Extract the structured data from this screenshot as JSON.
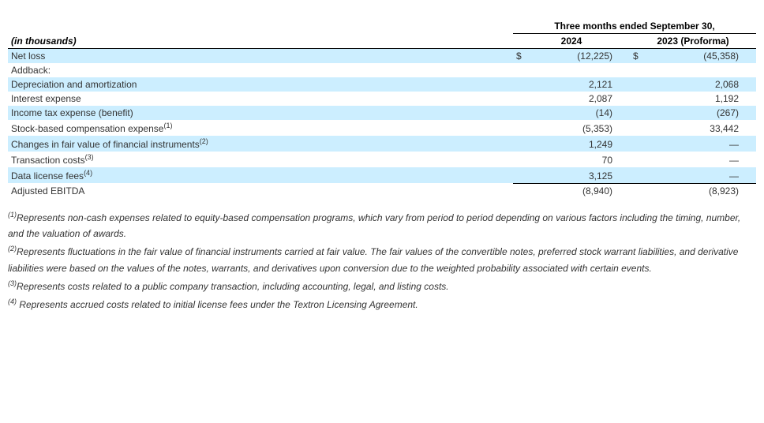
{
  "table": {
    "super_header": "Three months ended September 30,",
    "unit_label": "(in thousands)",
    "col_headers": [
      "2024",
      "2023 (Proforma)"
    ],
    "highlight_color": "#cceeff",
    "rows": [
      {
        "label": "Net loss",
        "sup": "",
        "sym1": "$",
        "val1": "(12,225)",
        "sym2": "$",
        "val2": "(45,358)",
        "hl": true
      },
      {
        "label": "Addback:",
        "sup": "",
        "sym1": "",
        "val1": "",
        "sym2": "",
        "val2": "",
        "hl": false
      },
      {
        "label": "Depreciation and amortization",
        "sup": "",
        "sym1": "",
        "val1": "2,121",
        "sym2": "",
        "val2": "2,068",
        "hl": true
      },
      {
        "label": "Interest expense",
        "sup": "",
        "sym1": "",
        "val1": "2,087",
        "sym2": "",
        "val2": "1,192",
        "hl": false
      },
      {
        "label": "Income tax expense (benefit)",
        "sup": "",
        "sym1": "",
        "val1": "(14)",
        "sym2": "",
        "val2": "(267)",
        "hl": true
      },
      {
        "label": "Stock-based compensation expense",
        "sup": "(1)",
        "sym1": "",
        "val1": "(5,353)",
        "sym2": "",
        "val2": "33,442",
        "hl": false
      },
      {
        "label": "Changes in fair value of financial instruments",
        "sup": "(2)",
        "sym1": "",
        "val1": "1,249",
        "sym2": "",
        "val2": "—",
        "hl": true
      },
      {
        "label": "Transaction costs",
        "sup": "(3)",
        "sym1": "",
        "val1": "70",
        "sym2": "",
        "val2": "—",
        "hl": false
      },
      {
        "label": "Data license fees",
        "sup": "(4)",
        "sym1": "",
        "val1": "3,125",
        "sym2": "",
        "val2": "—",
        "hl": true
      }
    ],
    "total_row": {
      "label": "Adjusted EBITDA",
      "sym1": "",
      "val1": "(8,940)",
      "sym2": "",
      "val2": "(8,923)"
    }
  },
  "footnotes": [
    {
      "sup": "(1)",
      "text": "Represents non-cash expenses related to equity-based compensation programs, which vary from period to period depending on various factors including the timing, number, and the valuation of awards."
    },
    {
      "sup": "(2)",
      "text": "Represents fluctuations in the fair value of financial instruments carried at fair value. The fair values of the convertible notes, preferred stock warrant liabilities, and derivative liabilities were based on the values of the notes, warrants, and derivatives upon conversion due to the weighted probability associated with certain events."
    },
    {
      "sup": "(3)",
      "text": "Represents costs related to a public company transaction, including accounting, legal, and listing costs."
    },
    {
      "sup": "(4)",
      "text": " Represents accrued costs related to initial license fees under the Textron Licensing Agreement."
    }
  ]
}
